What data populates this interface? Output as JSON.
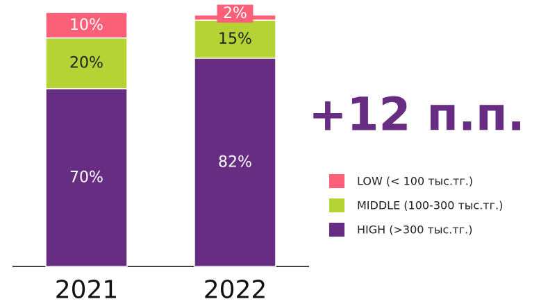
{
  "chart_data": {
    "type": "stacked_bar",
    "categories": [
      "2021",
      "2022"
    ],
    "series": [
      {
        "name": "HIGH (>300 тыс.тг.)",
        "color": "#662d82",
        "values": [
          70,
          82
        ],
        "value_labels": [
          "70%",
          "82%"
        ]
      },
      {
        "name": "MIDDLE (100-300 тыс.тг.)",
        "color": "#b5d334",
        "values": [
          20,
          15
        ],
        "value_labels": [
          "20%",
          "15%"
        ]
      },
      {
        "name": "LOW (< 100 тыс.тг.)",
        "color": "#fc5f78",
        "values": [
          10,
          2
        ],
        "value_labels": [
          "10%",
          "2%"
        ]
      }
    ],
    "ylim": [
      0,
      100
    ],
    "annotation": "+12 п.п."
  }
}
